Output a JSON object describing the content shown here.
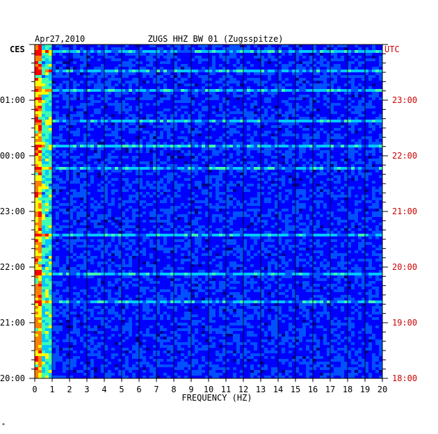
{
  "header": {
    "date": "Apr27,2010",
    "station": "ZUGS HHZ BW 01 (Zugsspitze)",
    "left_tz": "CES",
    "right_tz": "UTC",
    "footer_mark": "*"
  },
  "chart_data": {
    "type": "heatmap",
    "title": "ZUGS HHZ BW 01 (Zugsspitze)",
    "date": "Apr27,2010",
    "xlabel": "FREQUENCY (HZ)",
    "xlim": [
      0,
      20
    ],
    "x_ticks": [
      "0",
      "1",
      "2",
      "3",
      "4",
      "5",
      "6",
      "7",
      "8",
      "9",
      "10",
      "11",
      "12",
      "13",
      "14",
      "15",
      "16",
      "17",
      "18",
      "19",
      "20"
    ],
    "left_axis_label": "CES",
    "left_ticks": [
      "01:00",
      "00:00",
      "23:00",
      "22:00",
      "21:00",
      "20:00"
    ],
    "right_axis_label": "UTC",
    "right_ticks": [
      "23:00",
      "22:00",
      "21:00",
      "20:00",
      "19:00",
      "18:00"
    ],
    "time_span_hours": 6,
    "colormap": [
      "#00008b",
      "#0000ff",
      "#0050ff",
      "#00c8ff",
      "#40ffb0",
      "#ffff00",
      "#ff8000",
      "#ff0000"
    ],
    "grid": true,
    "bright_rows_hours_from_top": [
      0.1,
      0.45,
      0.8,
      1.35,
      1.8,
      2.2,
      3.4,
      4.1,
      4.6
    ]
  }
}
